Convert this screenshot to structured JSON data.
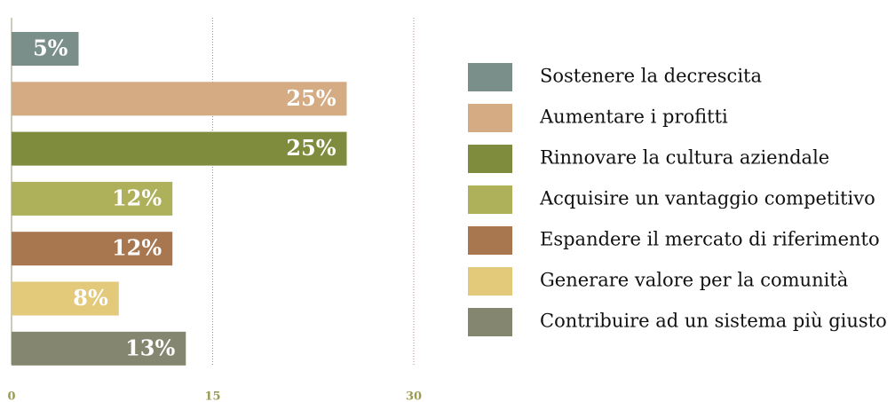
{
  "chart_data": {
    "type": "bar",
    "orientation": "horizontal",
    "categories": [
      "Sostenere la decrescita",
      "Aumentare i profitti",
      "Rinnovare la cultura aziendale",
      "Acquisire un vantaggio competitivo",
      "Espandere il mercato di riferimento",
      "Generare valore per la comunità",
      "Contribuire ad un sistema più giusto"
    ],
    "values": [
      5,
      25,
      25,
      12,
      12,
      8,
      13
    ],
    "value_labels": [
      "5%",
      "25%",
      "25%",
      "12%",
      "12%",
      "8%",
      "13%"
    ],
    "colors": [
      "#7a8e8a",
      "#d4ab82",
      "#7f8b3d",
      "#aeb05a",
      "#a8764f",
      "#e3c97a",
      "#858670"
    ],
    "xlim": [
      0,
      30
    ],
    "xticks": [
      0,
      15,
      30
    ],
    "grid": true,
    "legend": "right"
  }
}
